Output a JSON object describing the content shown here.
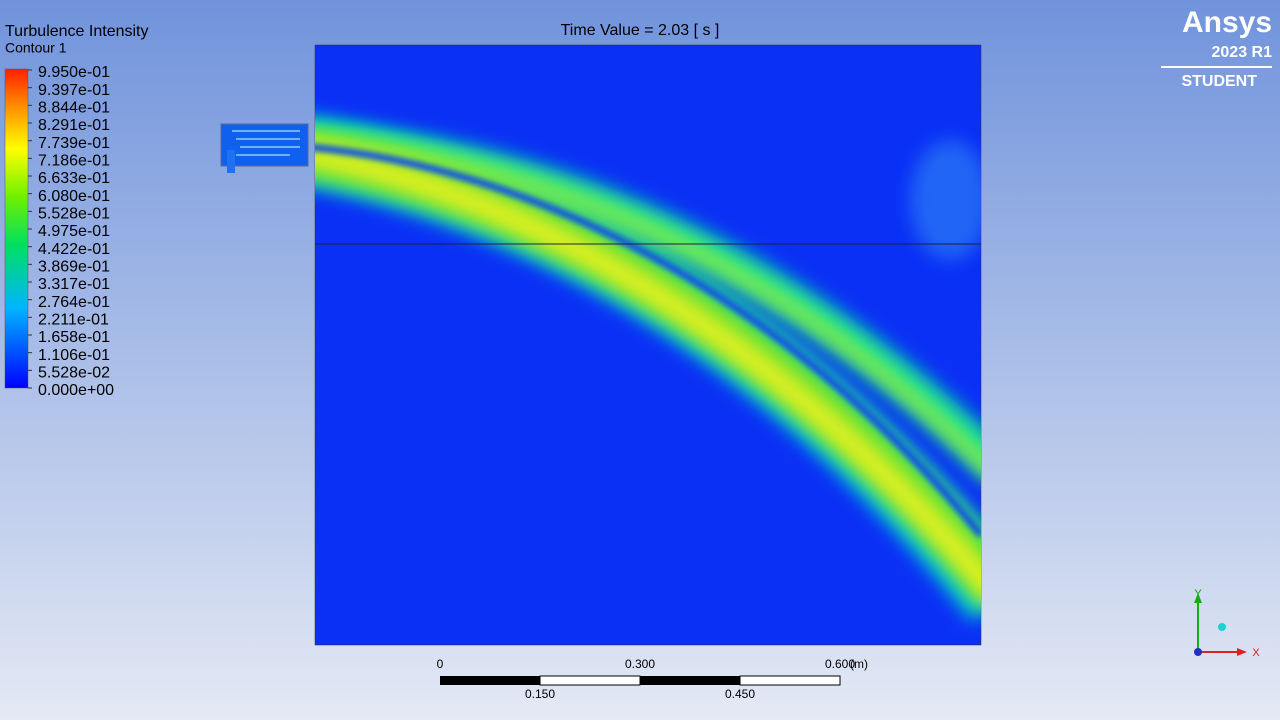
{
  "legend": {
    "title": "Turbulence Intensity",
    "subtitle": "Contour 1",
    "labels": [
      "9.950e-01",
      "9.397e-01",
      "8.844e-01",
      "8.291e-01",
      "7.739e-01",
      "7.186e-01",
      "6.633e-01",
      "6.080e-01",
      "5.528e-01",
      "4.975e-01",
      "4.422e-01",
      "3.869e-01",
      "3.317e-01",
      "2.764e-01",
      "2.211e-01",
      "1.658e-01",
      "1.106e-01",
      "5.528e-02",
      "0.000e+00"
    ]
  },
  "header": {
    "time_value": "Time Value = 2.03 [ s ]"
  },
  "brand": {
    "name": "Ansys",
    "version": "2023 R1",
    "edition": "STUDENT"
  },
  "scale": {
    "top_labels": [
      "0",
      "0.300",
      "0.600"
    ],
    "bottom_labels": [
      "0.150",
      "0.450"
    ],
    "unit": "(m)"
  },
  "axes": {
    "x": "X",
    "y": "Y"
  }
}
